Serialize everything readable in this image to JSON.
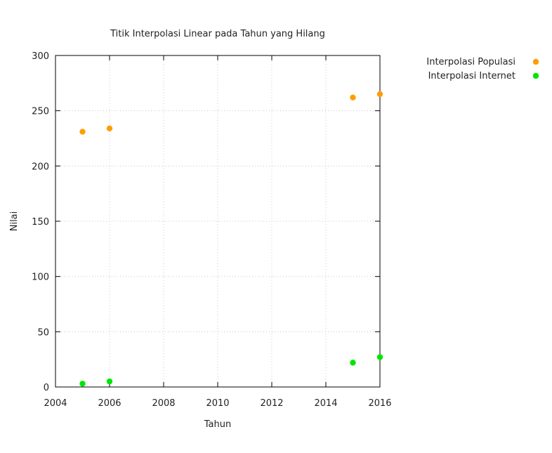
{
  "chart_data": {
    "type": "scatter",
    "title": "Titik Interpolasi Linear pada Tahun yang Hilang",
    "xlabel": "Tahun",
    "ylabel": "Nilai",
    "xlim": [
      2004,
      2016
    ],
    "ylim": [
      0,
      300
    ],
    "x_ticks": [
      2004,
      2006,
      2008,
      2010,
      2012,
      2014,
      2016
    ],
    "y_ticks": [
      0,
      50,
      100,
      150,
      200,
      250,
      300
    ],
    "grid": true,
    "legend_position": "outside-right-top",
    "series": [
      {
        "name": "Interpolasi Populasi",
        "color": "#ff9e00",
        "points": [
          {
            "x": 2005,
            "y": 231
          },
          {
            "x": 2006,
            "y": 234
          },
          {
            "x": 2015,
            "y": 262
          },
          {
            "x": 2016,
            "y": 265
          }
        ]
      },
      {
        "name": "Interpolasi Internet",
        "color": "#00e600",
        "points": [
          {
            "x": 2005,
            "y": 3
          },
          {
            "x": 2006,
            "y": 5
          },
          {
            "x": 2015,
            "y": 22
          },
          {
            "x": 2016,
            "y": 27
          }
        ]
      }
    ]
  }
}
